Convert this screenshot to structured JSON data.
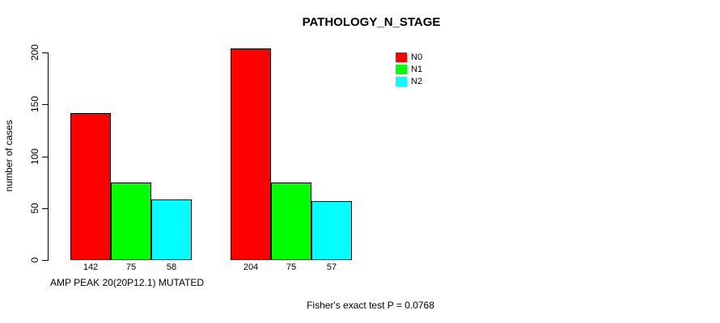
{
  "chart_data": {
    "type": "bar",
    "title": "PATHOLOGY_N_STAGE",
    "ylabel": "number of cases",
    "xlabel": "AMP PEAK 20(20P12.1) MUTATED",
    "annotation": "Fisher's exact test P = 0.0768",
    "y_ticks": [
      0,
      50,
      100,
      150,
      200
    ],
    "ylim": [
      0,
      200
    ],
    "grid": false,
    "legend_position": "top-right",
    "n_groups": 2,
    "series": [
      {
        "name": "N0",
        "color": "#ff0000",
        "values": [
          142,
          204
        ]
      },
      {
        "name": "N1",
        "color": "#00ff00",
        "values": [
          75,
          75
        ]
      },
      {
        "name": "N2",
        "color": "#00ffff",
        "values": [
          58,
          57
        ]
      }
    ]
  }
}
